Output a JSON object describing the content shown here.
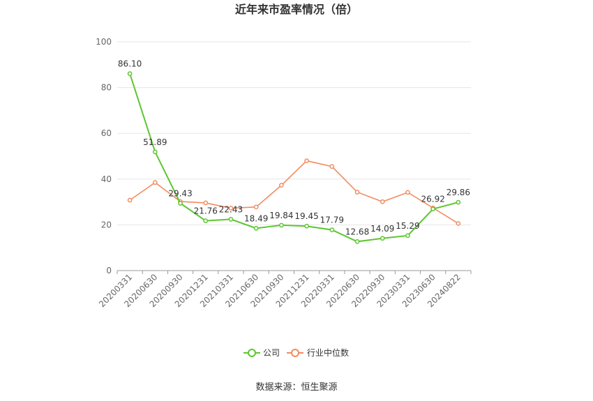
{
  "chart_data": {
    "type": "line",
    "title": "近年来市盈率情况（倍）",
    "categories": [
      "20200331",
      "20200630",
      "20200930",
      "20201231",
      "20210331",
      "20210630",
      "20210930",
      "20211231",
      "20220331",
      "20220630",
      "20220930",
      "20230331",
      "20230630",
      "20240822"
    ],
    "series": [
      {
        "name": "公司",
        "color": "#5cc62f",
        "values": [
          86.1,
          51.89,
          29.43,
          21.76,
          22.43,
          18.49,
          19.84,
          19.45,
          17.79,
          12.68,
          14.09,
          15.29,
          26.92,
          29.86
        ],
        "labels": [
          "86.10",
          "51.89",
          "29.43",
          "21.76",
          "22.43",
          "18.49",
          "19.84",
          "19.45",
          "17.79",
          "12.68",
          "14.09",
          "15.29",
          "26.92",
          "29.86"
        ]
      },
      {
        "name": "行业中位数",
        "color": "#f28c5f",
        "values": [
          30.8,
          38.5,
          30.2,
          29.6,
          27.3,
          27.8,
          37.3,
          48.0,
          45.5,
          34.3,
          30.1,
          34.2,
          27.4,
          20.6
        ]
      }
    ],
    "ylim": [
      0,
      100
    ],
    "yticks": [
      0,
      20,
      40,
      60,
      80,
      100
    ],
    "grid": true,
    "legend_position": "bottom",
    "source": "数据来源：恒生聚源"
  }
}
